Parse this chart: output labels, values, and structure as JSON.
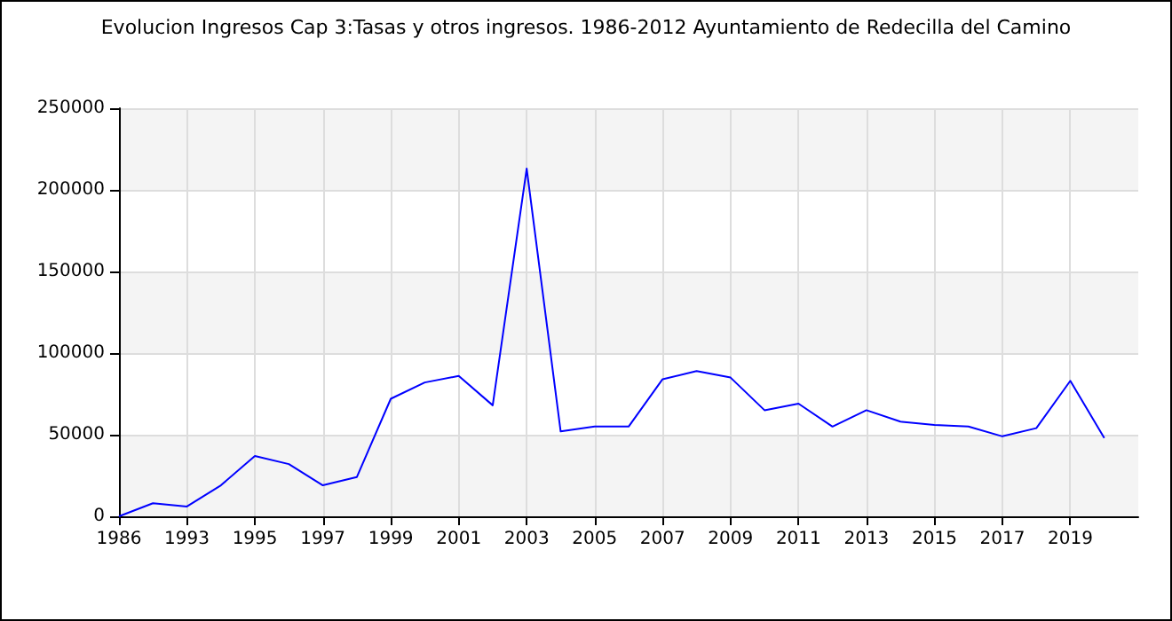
{
  "chart_data": {
    "type": "line",
    "title": "Evolucion Ingresos Cap 3:Tasas y otros ingresos. 1986-2012 Ayuntamiento de Redecilla del Camino",
    "categories": [
      "1986",
      null,
      "1993",
      null,
      "1995",
      null,
      "1997",
      null,
      "1999",
      null,
      "2001",
      null,
      "2003",
      null,
      "2005",
      null,
      "2007",
      null,
      "2009",
      null,
      "2011",
      null,
      "2013",
      null,
      "2015",
      null,
      "2017",
      null,
      "2019",
      null,
      null
    ],
    "series": [
      {
        "color": "#0000ff",
        "values": [
          0,
          8000,
          6000,
          19000,
          37000,
          32000,
          19000,
          24000,
          72000,
          82000,
          86000,
          68000,
          213000,
          52000,
          55000,
          55000,
          84000,
          89000,
          85000,
          65000,
          69000,
          55000,
          65000,
          58000,
          56000,
          55000,
          49000,
          54000,
          83000,
          48000,
          null
        ]
      }
    ],
    "ylim": [
      0,
      250000
    ],
    "yticks": [
      0,
      50000,
      100000,
      150000,
      200000,
      250000
    ],
    "grid": true,
    "marker": "none",
    "line_style": "solid"
  }
}
